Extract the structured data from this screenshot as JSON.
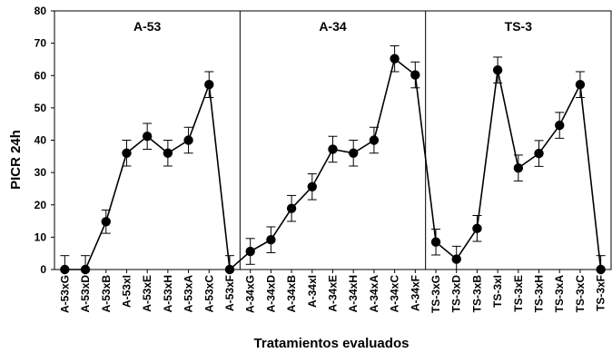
{
  "chart_data": {
    "type": "line",
    "title": "",
    "xlabel": "Tratamientos evaluados",
    "ylabel": "PICR 24h",
    "ylim": [
      0,
      80
    ],
    "yticks": [
      0,
      10,
      20,
      30,
      40,
      50,
      60,
      70,
      80
    ],
    "grid": false,
    "legend": "none",
    "categories": [
      "A-53xG",
      "A-53xD",
      "A-53xB",
      "A-53xI",
      "A-53xE",
      "A-53xH",
      "A-53xA",
      "A-53xC",
      "A-53xF",
      "A-34xG",
      "A-34xD",
      "A-34xB",
      "A-34xI",
      "A-34xE",
      "A-34xH",
      "A-34xA",
      "A-34xC",
      "A-34xF",
      "TS-3xG",
      "TS-3xD",
      "TS-3xB",
      "TS-3xI",
      "TS-3xE",
      "TS-3xH",
      "TS-3xA",
      "TS-3xC",
      "TS-3xF"
    ],
    "values": [
      0,
      0,
      14.8,
      36,
      41.2,
      36,
      40,
      57.2,
      0,
      5.6,
      9.2,
      18.9,
      25.6,
      37.2,
      36,
      40,
      65.2,
      60.2,
      8.5,
      3.2,
      12.7,
      61.7,
      31.4,
      35.9,
      44.6,
      57.2,
      0
    ],
    "errors": [
      4.3,
      4.3,
      3.6,
      4,
      4,
      4,
      4,
      4,
      4.3,
      4,
      4,
      4,
      4,
      4,
      4,
      4,
      4,
      4,
      4,
      4,
      4,
      4,
      4,
      4,
      4,
      4,
      4.3
    ],
    "groups": [
      {
        "label": "A-53",
        "start": 0,
        "end": 8
      },
      {
        "label": "A-34",
        "start": 9,
        "end": 17
      },
      {
        "label": "TS-3",
        "start": 18,
        "end": 26
      }
    ],
    "colors": {
      "line": "#000000",
      "marker": "#000000",
      "axis": "#000000"
    }
  }
}
